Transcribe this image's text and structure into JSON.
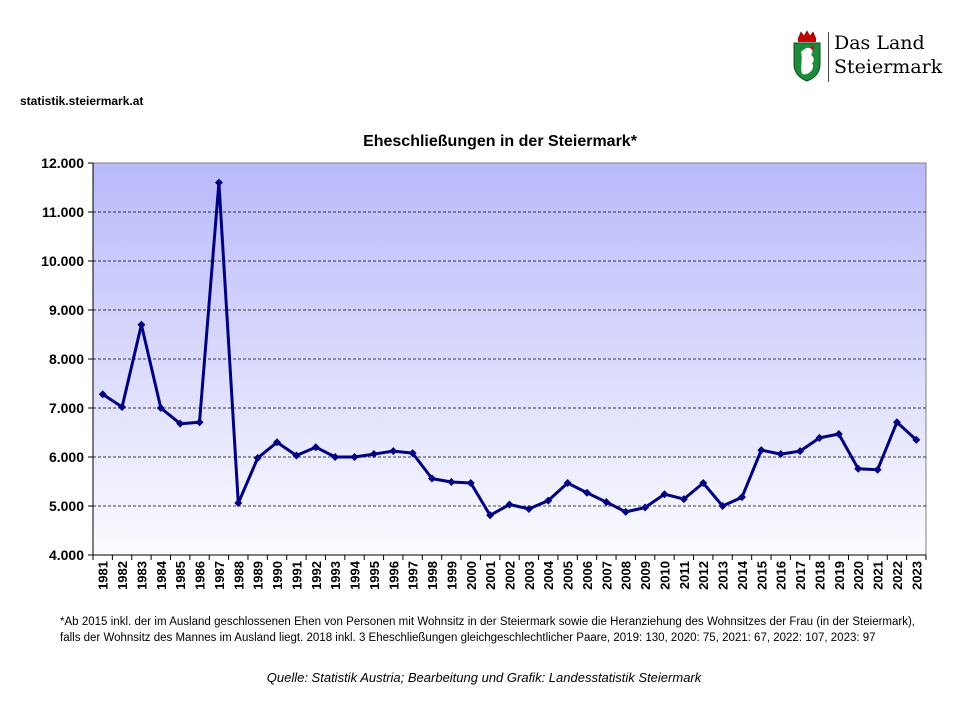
{
  "header": {
    "site": "statistik.steiermark.at",
    "logo_line1": "Das Land",
    "logo_line2": "Steiermark"
  },
  "footnote": "*Ab 2015 inkl. der im Ausland geschlossenen Ehen von Personen mit Wohnsitz in der Steiermark sowie die Heranziehung des Wohnsitzes der Frau (in der Steiermark), falls der Wohnsitz des Mannes im Ausland liegt. 2018 inkl. 3 Eheschließungen gleichgeschlechtlicher Paare, 2019: 130, 2020: 75, 2021: 67, 2022: 107, 2023: 97",
  "source": "Quelle: Statistik Austria; Bearbeitung und Grafik: Landesstatistik Steiermark",
  "chart_data": {
    "type": "line",
    "title": "Eheschließungen in der Steiermark*",
    "xlabel": "",
    "ylabel": "",
    "ylim": [
      4000,
      12000
    ],
    "yticks": [
      4000,
      5000,
      6000,
      7000,
      8000,
      9000,
      10000,
      11000,
      12000
    ],
    "ytick_labels": [
      "4.000",
      "5.000",
      "6.000",
      "7.000",
      "8.000",
      "9.000",
      "10.000",
      "11.000",
      "12.000"
    ],
    "grid": "horizontal dashed",
    "legend": "none",
    "categories": [
      "1981",
      "1982",
      "1983",
      "1984",
      "1985",
      "1986",
      "1987",
      "1988",
      "1989",
      "1990",
      "1991",
      "1992",
      "1993",
      "1994",
      "1995",
      "1996",
      "1997",
      "1998",
      "1999",
      "2000",
      "2001",
      "2002",
      "2003",
      "2004",
      "2005",
      "2006",
      "2007",
      "2008",
      "2009",
      "2010",
      "2011",
      "2012",
      "2013",
      "2014",
      "2015",
      "2016",
      "2017",
      "2018",
      "2019",
      "2020",
      "2021",
      "2022",
      "2023"
    ],
    "series": [
      {
        "color": "#000080",
        "values": [
          7280,
          7020,
          8700,
          7000,
          6680,
          6710,
          11600,
          5060,
          5980,
          6300,
          6030,
          6200,
          6000,
          6000,
          6060,
          6120,
          6080,
          5560,
          5490,
          5470,
          4810,
          5030,
          4940,
          5110,
          5470,
          5270,
          5080,
          4880,
          4970,
          5240,
          5140,
          5470,
          5000,
          5180,
          6140,
          6060,
          6120,
          6390,
          6470,
          5760,
          5740,
          6710,
          6350
        ]
      }
    ]
  }
}
